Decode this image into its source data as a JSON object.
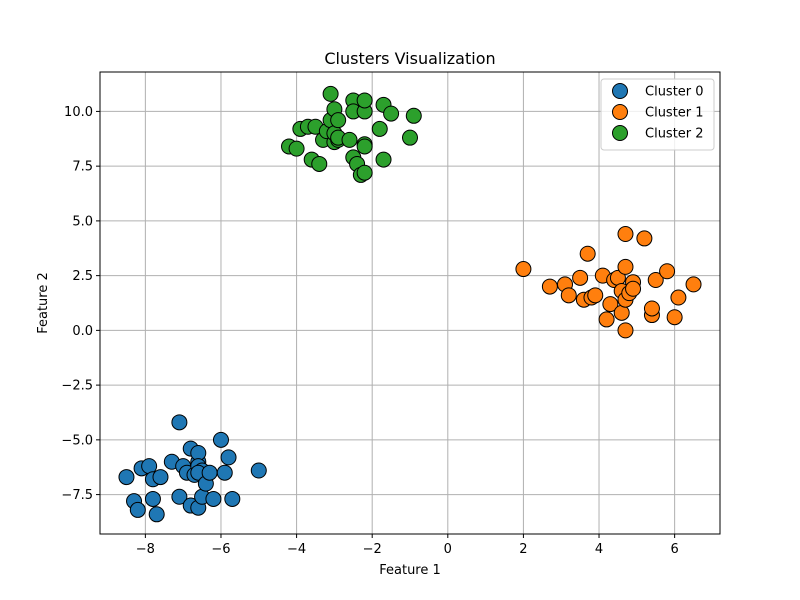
{
  "chart_data": {
    "type": "scatter",
    "title": "Clusters Visualization",
    "xlabel": "Feature 1",
    "ylabel": "Feature 2",
    "xlim": [
      -9.2,
      7.2
    ],
    "ylim": [
      -9.3,
      11.8
    ],
    "xticks": [
      -8,
      -6,
      -4,
      -2,
      0,
      2,
      4,
      6
    ],
    "xtick_labels": [
      "−8",
      "−6",
      "−4",
      "−2",
      "0",
      "2",
      "4",
      "6"
    ],
    "yticks": [
      -7.5,
      -5.0,
      -2.5,
      0.0,
      2.5,
      5.0,
      7.5,
      10.0
    ],
    "ytick_labels": [
      "−7.5",
      "−5.0",
      "−2.5",
      "0.0",
      "2.5",
      "5.0",
      "7.5",
      "10.0"
    ],
    "grid": true,
    "legend_position": "top-right",
    "series": [
      {
        "name": "Cluster 0",
        "color": "#1f77b4",
        "points": [
          [
            -8.5,
            -6.7
          ],
          [
            -8.3,
            -7.8
          ],
          [
            -8.2,
            -8.2
          ],
          [
            -8.1,
            -6.3
          ],
          [
            -7.9,
            -6.2
          ],
          [
            -7.8,
            -6.8
          ],
          [
            -7.8,
            -7.7
          ],
          [
            -7.7,
            -8.4
          ],
          [
            -7.6,
            -6.7
          ],
          [
            -7.3,
            -6.0
          ],
          [
            -7.1,
            -4.2
          ],
          [
            -7.1,
            -7.6
          ],
          [
            -7.0,
            -6.2
          ],
          [
            -6.9,
            -6.5
          ],
          [
            -6.8,
            -5.4
          ],
          [
            -6.8,
            -8.0
          ],
          [
            -6.7,
            -6.6
          ],
          [
            -6.6,
            -8.1
          ],
          [
            -6.6,
            -6.0
          ],
          [
            -6.6,
            -5.6
          ],
          [
            -6.6,
            -6.2
          ],
          [
            -6.5,
            -6.4
          ],
          [
            -6.6,
            -6.5
          ],
          [
            -6.5,
            -7.6
          ],
          [
            -6.4,
            -7.0
          ],
          [
            -6.3,
            -6.5
          ],
          [
            -6.2,
            -7.7
          ],
          [
            -6.0,
            -5.0
          ],
          [
            -5.9,
            -6.5
          ],
          [
            -5.8,
            -5.8
          ],
          [
            -5.7,
            -7.7
          ],
          [
            -5.0,
            -6.4
          ]
        ]
      },
      {
        "name": "Cluster 1",
        "color": "#ff7f0e",
        "points": [
          [
            2.0,
            2.8
          ],
          [
            2.7,
            2.0
          ],
          [
            3.1,
            2.1
          ],
          [
            3.2,
            1.6
          ],
          [
            3.5,
            2.4
          ],
          [
            3.7,
            3.5
          ],
          [
            3.6,
            1.4
          ],
          [
            3.8,
            1.5
          ],
          [
            3.9,
            1.6
          ],
          [
            4.1,
            2.5
          ],
          [
            4.2,
            0.5
          ],
          [
            4.3,
            1.2
          ],
          [
            4.4,
            2.3
          ],
          [
            4.5,
            2.4
          ],
          [
            4.6,
            0.8
          ],
          [
            4.6,
            1.8
          ],
          [
            4.7,
            4.4
          ],
          [
            4.7,
            2.9
          ],
          [
            4.7,
            1.4
          ],
          [
            4.7,
            0.0
          ],
          [
            4.8,
            1.7
          ],
          [
            4.9,
            2.2
          ],
          [
            4.9,
            1.9
          ],
          [
            5.2,
            4.2
          ],
          [
            5.4,
            0.7
          ],
          [
            5.4,
            1.0
          ],
          [
            5.5,
            2.3
          ],
          [
            5.8,
            2.7
          ],
          [
            6.0,
            0.6
          ],
          [
            6.1,
            1.5
          ],
          [
            6.5,
            2.1
          ]
        ]
      },
      {
        "name": "Cluster 2",
        "color": "#2ca02c",
        "points": [
          [
            -4.2,
            8.4
          ],
          [
            -4.0,
            8.3
          ],
          [
            -3.9,
            9.2
          ],
          [
            -3.7,
            9.3
          ],
          [
            -3.6,
            7.8
          ],
          [
            -3.5,
            9.3
          ],
          [
            -3.4,
            7.6
          ],
          [
            -3.3,
            8.7
          ],
          [
            -3.2,
            9.1
          ],
          [
            -3.1,
            9.6
          ],
          [
            -3.1,
            10.8
          ],
          [
            -3.0,
            8.6
          ],
          [
            -3.0,
            9.0
          ],
          [
            -3.0,
            10.1
          ],
          [
            -2.9,
            9.6
          ],
          [
            -2.9,
            8.7
          ],
          [
            -2.9,
            8.8
          ],
          [
            -2.6,
            8.7
          ],
          [
            -2.5,
            7.9
          ],
          [
            -2.5,
            10.5
          ],
          [
            -2.5,
            10.0
          ],
          [
            -2.4,
            7.6
          ],
          [
            -2.3,
            7.1
          ],
          [
            -2.2,
            7.2
          ],
          [
            -2.2,
            8.5
          ],
          [
            -2.2,
            8.4
          ],
          [
            -2.2,
            10.0
          ],
          [
            -2.2,
            10.5
          ],
          [
            -1.8,
            9.2
          ],
          [
            -1.7,
            10.3
          ],
          [
            -1.7,
            7.8
          ],
          [
            -1.5,
            9.9
          ],
          [
            -1.0,
            8.8
          ],
          [
            -0.9,
            9.8
          ]
        ]
      }
    ]
  }
}
